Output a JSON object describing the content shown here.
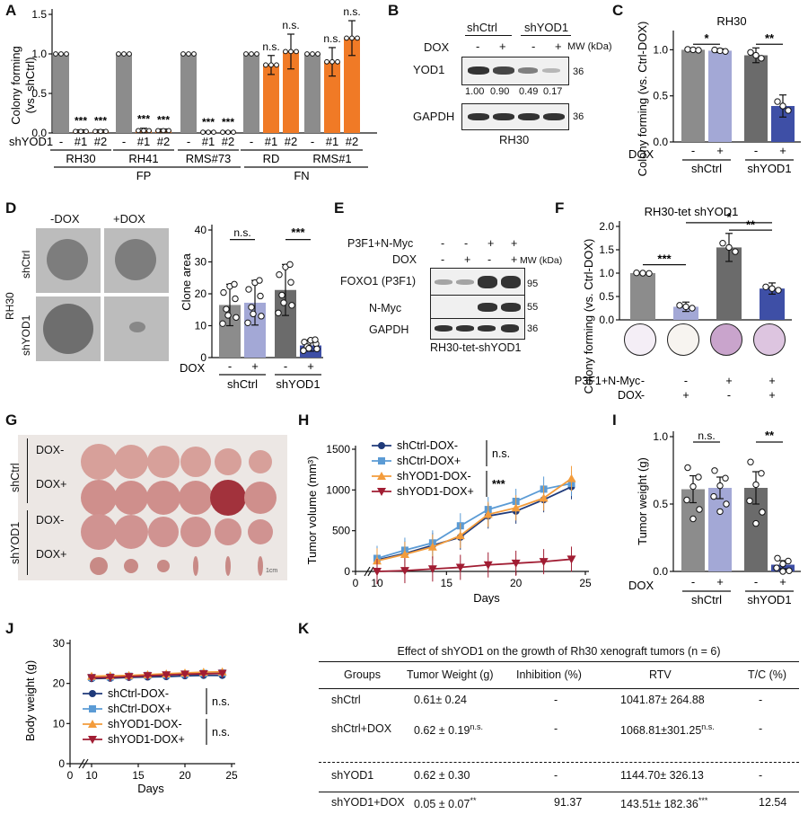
{
  "panels": {
    "A": "A",
    "B": "B",
    "C": "C",
    "D": "D",
    "E": "E",
    "F": "F",
    "G": "G",
    "H": "H",
    "I": "I",
    "J": "J",
    "K": "K"
  },
  "panelA": {
    "ylabel": "Colony forming",
    "ylabel2": "(vs. shCtrl)",
    "yticks": [
      "0.0",
      "0.5",
      "1.0",
      "1.5"
    ],
    "row_label": "shYOD1",
    "cond_labels": [
      "-",
      "#1",
      "#2"
    ],
    "groups": [
      "RH30",
      "RH41",
      "RMS#73",
      "RD",
      "RMS#1"
    ],
    "classes": [
      "FP",
      "FN"
    ],
    "sig": [
      "***",
      "***",
      "***",
      "***",
      "***",
      "***",
      "n.s.",
      "n.s.",
      "n.s.",
      "n.s."
    ]
  },
  "panelB": {
    "col_groups": [
      "shCtrl",
      "shYOD1"
    ],
    "dox_label": "DOX",
    "dox_states": [
      "-",
      "+",
      "-",
      "+"
    ],
    "mw_label": "MW (kDa)",
    "rows": [
      "YOD1",
      "GAPDH"
    ],
    "mw": [
      "36",
      "36"
    ],
    "quant": [
      "1.00",
      "0.90",
      "0.49",
      "0.17"
    ],
    "cell_line": "RH30"
  },
  "panelC": {
    "title": "RH30",
    "ylabel": "Colony forming (vs. Ctrl-DOX)",
    "yticks": [
      "0.0",
      "0.5",
      "1.0"
    ],
    "dox_label": "DOX",
    "dox_states": [
      "-",
      "+",
      "-",
      "+"
    ],
    "groups": [
      "shCtrl",
      "shYOD1"
    ],
    "sig": [
      "*",
      "**"
    ]
  },
  "panelD": {
    "col_labels": [
      "-DOX",
      "+DOX"
    ],
    "row_labels": [
      "shCtrl",
      "shYOD1"
    ],
    "cell_line": "RH30",
    "ylabel": "Clone area",
    "yticks": [
      "0",
      "10",
      "20",
      "30",
      "40"
    ],
    "dox_label": "DOX",
    "dox_states": [
      "-",
      "+",
      "-",
      "+"
    ],
    "groups": [
      "shCtrl",
      "shYOD1"
    ],
    "sig": [
      "n.s.",
      "***"
    ]
  },
  "panelE": {
    "row1_label": "P3F1+N-Myc",
    "row1_states": [
      "-",
      "-",
      "+",
      "+"
    ],
    "row2_label": "DOX",
    "row2_states": [
      "-",
      "+",
      "-",
      "+"
    ],
    "mw_label": "MW (kDa)",
    "rows": [
      "FOXO1 (P3F1)",
      "N-Myc",
      "GAPDH"
    ],
    "mw": [
      "95",
      "55",
      "36"
    ],
    "cell_line": "RH30-tet-shYOD1"
  },
  "panelF": {
    "title": "RH30-tet shYOD1",
    "ylabel": "Colony forming (vs. Ctrl-DOX)",
    "yticks": [
      "0.0",
      "0.5",
      "1.0",
      "1.5",
      "2.0"
    ],
    "row1_label": "P3F1+N-Myc",
    "row1_states": [
      "-",
      "-",
      "+",
      "+"
    ],
    "row2_label": "DOX",
    "row2_states": [
      "-",
      "+",
      "-",
      "+"
    ],
    "sig": [
      "***",
      "*",
      "**"
    ]
  },
  "panelG": {
    "group_labels": [
      "shCtrl",
      "shYOD1"
    ],
    "row_labels": [
      "DOX-",
      "DOX+",
      "DOX-",
      "DOX+"
    ],
    "scale": "1cm"
  },
  "panelH": {
    "ylabel": "Tumor volume (mm³)",
    "xlabel": "Days",
    "yticks": [
      "0",
      "500",
      "1000",
      "1500"
    ],
    "xticks": [
      "0",
      "10",
      "15",
      "20",
      "25"
    ],
    "legend": [
      "shCtrl-DOX-",
      "shCtrl-DOX+",
      "shYOD1-DOX-",
      "shYOD1-DOX+"
    ],
    "sig": [
      "n.s.",
      "***"
    ]
  },
  "panelI": {
    "ylabel": "Tumor weight (g)",
    "yticks": [
      "0.0",
      "0.5",
      "1.0"
    ],
    "dox_label": "DOX",
    "dox_states": [
      "-",
      "+",
      "-",
      "+"
    ],
    "groups": [
      "shCtrl",
      "shYOD1"
    ],
    "sig": [
      "n.s.",
      "**"
    ]
  },
  "panelJ": {
    "ylabel": "Body weight (g)",
    "xlabel": "Days",
    "yticks": [
      "0",
      "10",
      "20",
      "30"
    ],
    "xticks": [
      "0",
      "10",
      "15",
      "20",
      "25"
    ],
    "legend": [
      "shCtrl-DOX-",
      "shCtrl-DOX+",
      "shYOD1-DOX-",
      "shYOD1-DOX+"
    ],
    "sig": [
      "n.s.",
      "n.s."
    ]
  },
  "panelK": {
    "title": "Effect of shYOD1 on the growth of Rh30 xenograft tumors (n = 6)",
    "headers": [
      "Groups",
      "Tumor Weight (g)",
      "Inhibition (%)",
      "RTV",
      "T/C (%)"
    ],
    "rows": [
      {
        "group": "shCtrl",
        "weight": "0.61± 0.24",
        "wsig": "",
        "inhib": "-",
        "rtv": "1041.87± 264.88",
        "rsig": "",
        "tc": "-"
      },
      {
        "group": "shCtrl+DOX",
        "weight": "0.62 ± 0.19",
        "wsig": "n.s.",
        "inhib": "-",
        "rtv": "1068.81±301.25",
        "rsig": "n.s.",
        "tc": "-"
      },
      {
        "group": "shYOD1",
        "weight": "0.62 ± 0.30",
        "wsig": "",
        "inhib": "-",
        "rtv": "1144.70± 326.13",
        "rsig": "",
        "tc": "-"
      },
      {
        "group": "shYOD1+DOX",
        "weight": "0.05 ± 0.07",
        "wsig": "**",
        "inhib": "91.37",
        "rtv": "143.51± 182.36",
        "rsig": "***",
        "tc": "12.54"
      }
    ]
  },
  "colors": {
    "gray": "#8c8c8c",
    "orange": "#f07a26",
    "lavender": "#a3a8d6",
    "darkgray": "#6b6b6b",
    "blue": "#3e4fa6",
    "navy": "#1f3a7a",
    "lightblue": "#5b9bd5",
    "amber": "#f39c3c",
    "crimson": "#a11d33"
  },
  "chart_data": [
    {
      "panel": "A",
      "type": "bar",
      "categories": [
        "RH30 -",
        "RH30 #1",
        "RH30 #2",
        "RH41 -",
        "RH41 #1",
        "RH41 #2",
        "RMS#73 -",
        "RMS#73 #1",
        "RMS#73 #2",
        "RD -",
        "RD #1",
        "RD #2",
        "RMS#1 -",
        "RMS#1 #1",
        "RMS#1 #2"
      ],
      "values": [
        1.0,
        0.02,
        0.02,
        1.0,
        0.03,
        0.03,
        1.0,
        0.01,
        0.01,
        1.0,
        0.86,
        1.03,
        1.0,
        0.9,
        1.2
      ],
      "errors": [
        0,
        0.02,
        0.02,
        0,
        0.03,
        0.02,
        0,
        0.01,
        0.01,
        0,
        0.12,
        0.22,
        0,
        0.18,
        0.22
      ],
      "ylim": [
        0,
        1.5
      ]
    },
    {
      "panel": "C",
      "type": "bar",
      "categories": [
        "shCtrl -",
        "shCtrl +",
        "shYOD1 -",
        "shYOD1 +"
      ],
      "values": [
        1.0,
        0.99,
        0.94,
        0.39
      ],
      "errors": [
        0,
        0.02,
        0.08,
        0.12
      ],
      "ylim": [
        0,
        1.15
      ]
    },
    {
      "panel": "D",
      "type": "bar",
      "categories": [
        "shCtrl -",
        "shCtrl +",
        "shYOD1 -",
        "shYOD1 +"
      ],
      "values": [
        16.5,
        17.2,
        21.2,
        3.8
      ],
      "errors": [
        6.5,
        7.0,
        8.0,
        1.8
      ],
      "ylim": [
        0,
        40
      ]
    },
    {
      "panel": "F",
      "type": "bar",
      "categories": [
        "- / -",
        "- / +",
        "+ / -",
        "+ / +"
      ],
      "values": [
        1.0,
        0.28,
        1.55,
        0.67
      ],
      "errors": [
        0,
        0.1,
        0.3,
        0.12
      ],
      "ylim": [
        0,
        2.0
      ]
    },
    {
      "panel": "H",
      "type": "line",
      "x": [
        10,
        12,
        14,
        16,
        18,
        20,
        22,
        24
      ],
      "series": [
        {
          "name": "shCtrl-DOX-",
          "values": [
            140,
            220,
            320,
            420,
            680,
            740,
            880,
            1040
          ]
        },
        {
          "name": "shCtrl-DOX+",
          "values": [
            160,
            260,
            350,
            560,
            760,
            860,
            1010,
            1080
          ]
        },
        {
          "name": "shYOD1-DOX-",
          "values": [
            130,
            210,
            300,
            440,
            700,
            780,
            900,
            1140
          ]
        },
        {
          "name": "shYOD1-DOX+",
          "values": [
            0,
            10,
            30,
            50,
            80,
            100,
            120,
            150
          ]
        }
      ],
      "xlim": [
        0,
        25
      ],
      "ylim": [
        0,
        1500
      ]
    },
    {
      "panel": "I",
      "type": "bar",
      "categories": [
        "shCtrl -",
        "shCtrl +",
        "shYOD1 -",
        "shYOD1 +"
      ],
      "values": [
        0.61,
        0.62,
        0.62,
        0.05
      ],
      "errors": [
        0.1,
        0.08,
        0.12,
        0.03
      ],
      "ylim": [
        0,
        1.0
      ]
    },
    {
      "panel": "J",
      "type": "line",
      "x": [
        10,
        12,
        14,
        16,
        18,
        20,
        22,
        24
      ],
      "series": [
        {
          "name": "shCtrl-DOX-",
          "values": [
            21.2,
            21.3,
            21.5,
            21.6,
            21.7,
            21.9,
            22.0,
            22.0
          ]
        },
        {
          "name": "shCtrl-DOX+",
          "values": [
            21.5,
            21.6,
            21.8,
            22.0,
            22.1,
            22.3,
            22.5,
            22.6
          ]
        },
        {
          "name": "shYOD1-DOX-",
          "values": [
            21.8,
            21.9,
            22.0,
            22.2,
            22.4,
            22.6,
            22.8,
            22.9
          ]
        },
        {
          "name": "shYOD1-DOX+",
          "values": [
            21.4,
            21.5,
            21.7,
            21.9,
            22.1,
            22.3,
            22.4,
            22.5
          ]
        }
      ],
      "xlim": [
        0,
        25
      ],
      "ylim": [
        0,
        30
      ]
    }
  ]
}
